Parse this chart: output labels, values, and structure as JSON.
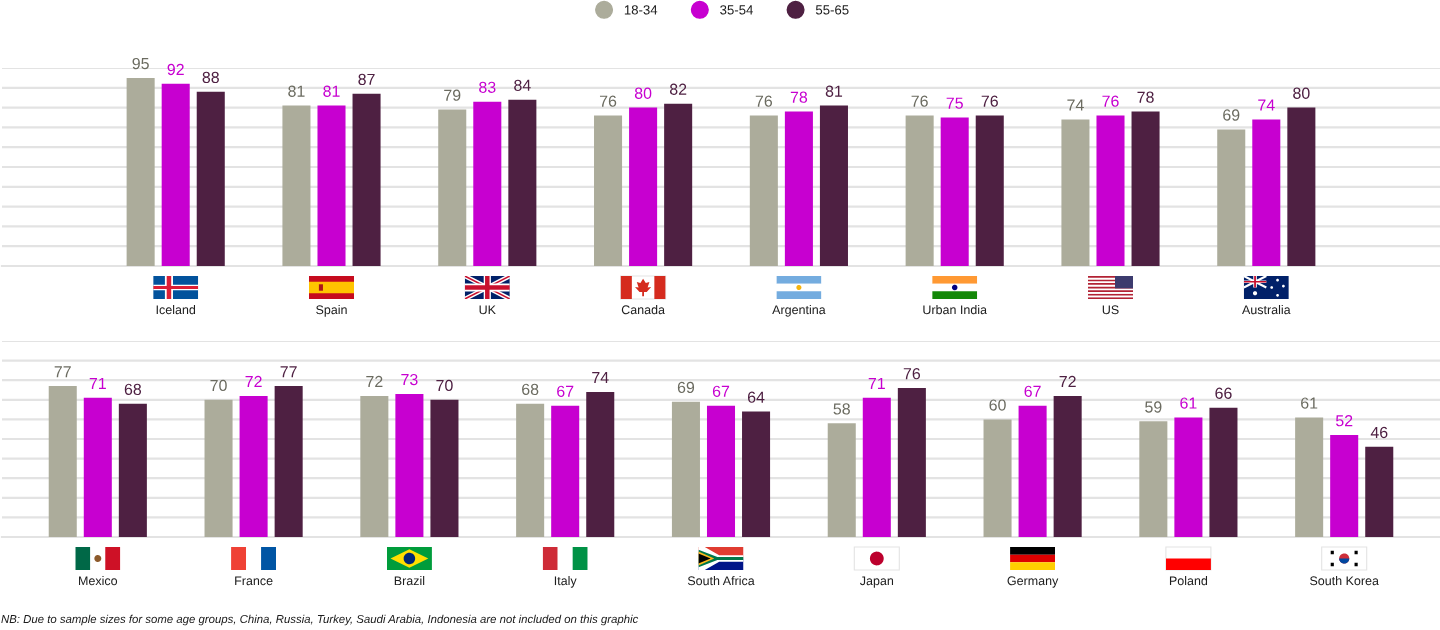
{
  "chart_data": [
    {
      "type": "bar",
      "categories": [
        "Iceland",
        "Spain",
        "UK",
        "Canada",
        "Argentina",
        "Urban India",
        "US",
        "Australia"
      ],
      "series": [
        {
          "name": "18-34",
          "color": "#acac9b",
          "values": [
            95,
            81,
            79,
            76,
            76,
            76,
            74,
            69
          ]
        },
        {
          "name": "35-54",
          "color": "#c700d0",
          "values": [
            92,
            81,
            83,
            80,
            78,
            75,
            76,
            74
          ]
        },
        {
          "name": "55-65",
          "color": "#4e2042",
          "values": [
            88,
            87,
            84,
            82,
            81,
            76,
            78,
            80
          ]
        }
      ],
      "ylim": [
        0,
        100
      ],
      "yticks": [
        {
          "value": 0,
          "label": null
        },
        {
          "value": 10,
          "label": null
        },
        {
          "value": 20,
          "label": null
        },
        {
          "value": 30,
          "label": null
        },
        {
          "value": 40,
          "label": null
        },
        {
          "value": 50,
          "label": null
        },
        {
          "value": 60,
          "label": null
        },
        {
          "value": 70,
          "label": null
        },
        {
          "value": 80,
          "label": null
        },
        {
          "value": 90,
          "label": null
        },
        {
          "value": 100,
          "label": null
        }
      ],
      "grid": "y",
      "tick_labels": "x",
      "legend": "top",
      "data_labels": true
    },
    {
      "type": "bar",
      "categories": [
        "Mexico",
        "France",
        "Brazil",
        "Italy",
        "South Africa",
        "Japan",
        "Germany",
        "Poland",
        "South Korea"
      ],
      "series": [
        {
          "color": "#acac9b",
          "values": [
            77,
            70,
            72,
            68,
            69,
            58,
            60,
            59,
            61
          ]
        },
        {
          "color": "#c700d0",
          "values": [
            71,
            72,
            73,
            67,
            67,
            71,
            67,
            61,
            52
          ]
        },
        {
          "color": "#4e2042",
          "values": [
            68,
            77,
            70,
            74,
            64,
            76,
            72,
            66,
            46
          ]
        }
      ],
      "ylim": [
        0,
        100
      ],
      "yticks": [
        {
          "value": 0,
          "label": null
        },
        {
          "value": 10,
          "label": null
        },
        {
          "value": 20,
          "label": null
        },
        {
          "value": 30,
          "label": null
        },
        {
          "value": 40,
          "label": null
        },
        {
          "value": 50,
          "label": null
        },
        {
          "value": 60,
          "label": null
        },
        {
          "value": 70,
          "label": null
        },
        {
          "value": 80,
          "label": null
        },
        {
          "value": 90,
          "label": null
        },
        {
          "value": 100,
          "label": null
        }
      ],
      "grid": "y",
      "tick_labels": "x",
      "data_labels": true,
      "annotations": [
        "NB: Due to sample sizes for some age groups, China, Russia, Turkey, Saudi Arabia, Indonesia are not included on this graphic"
      ]
    }
  ]
}
